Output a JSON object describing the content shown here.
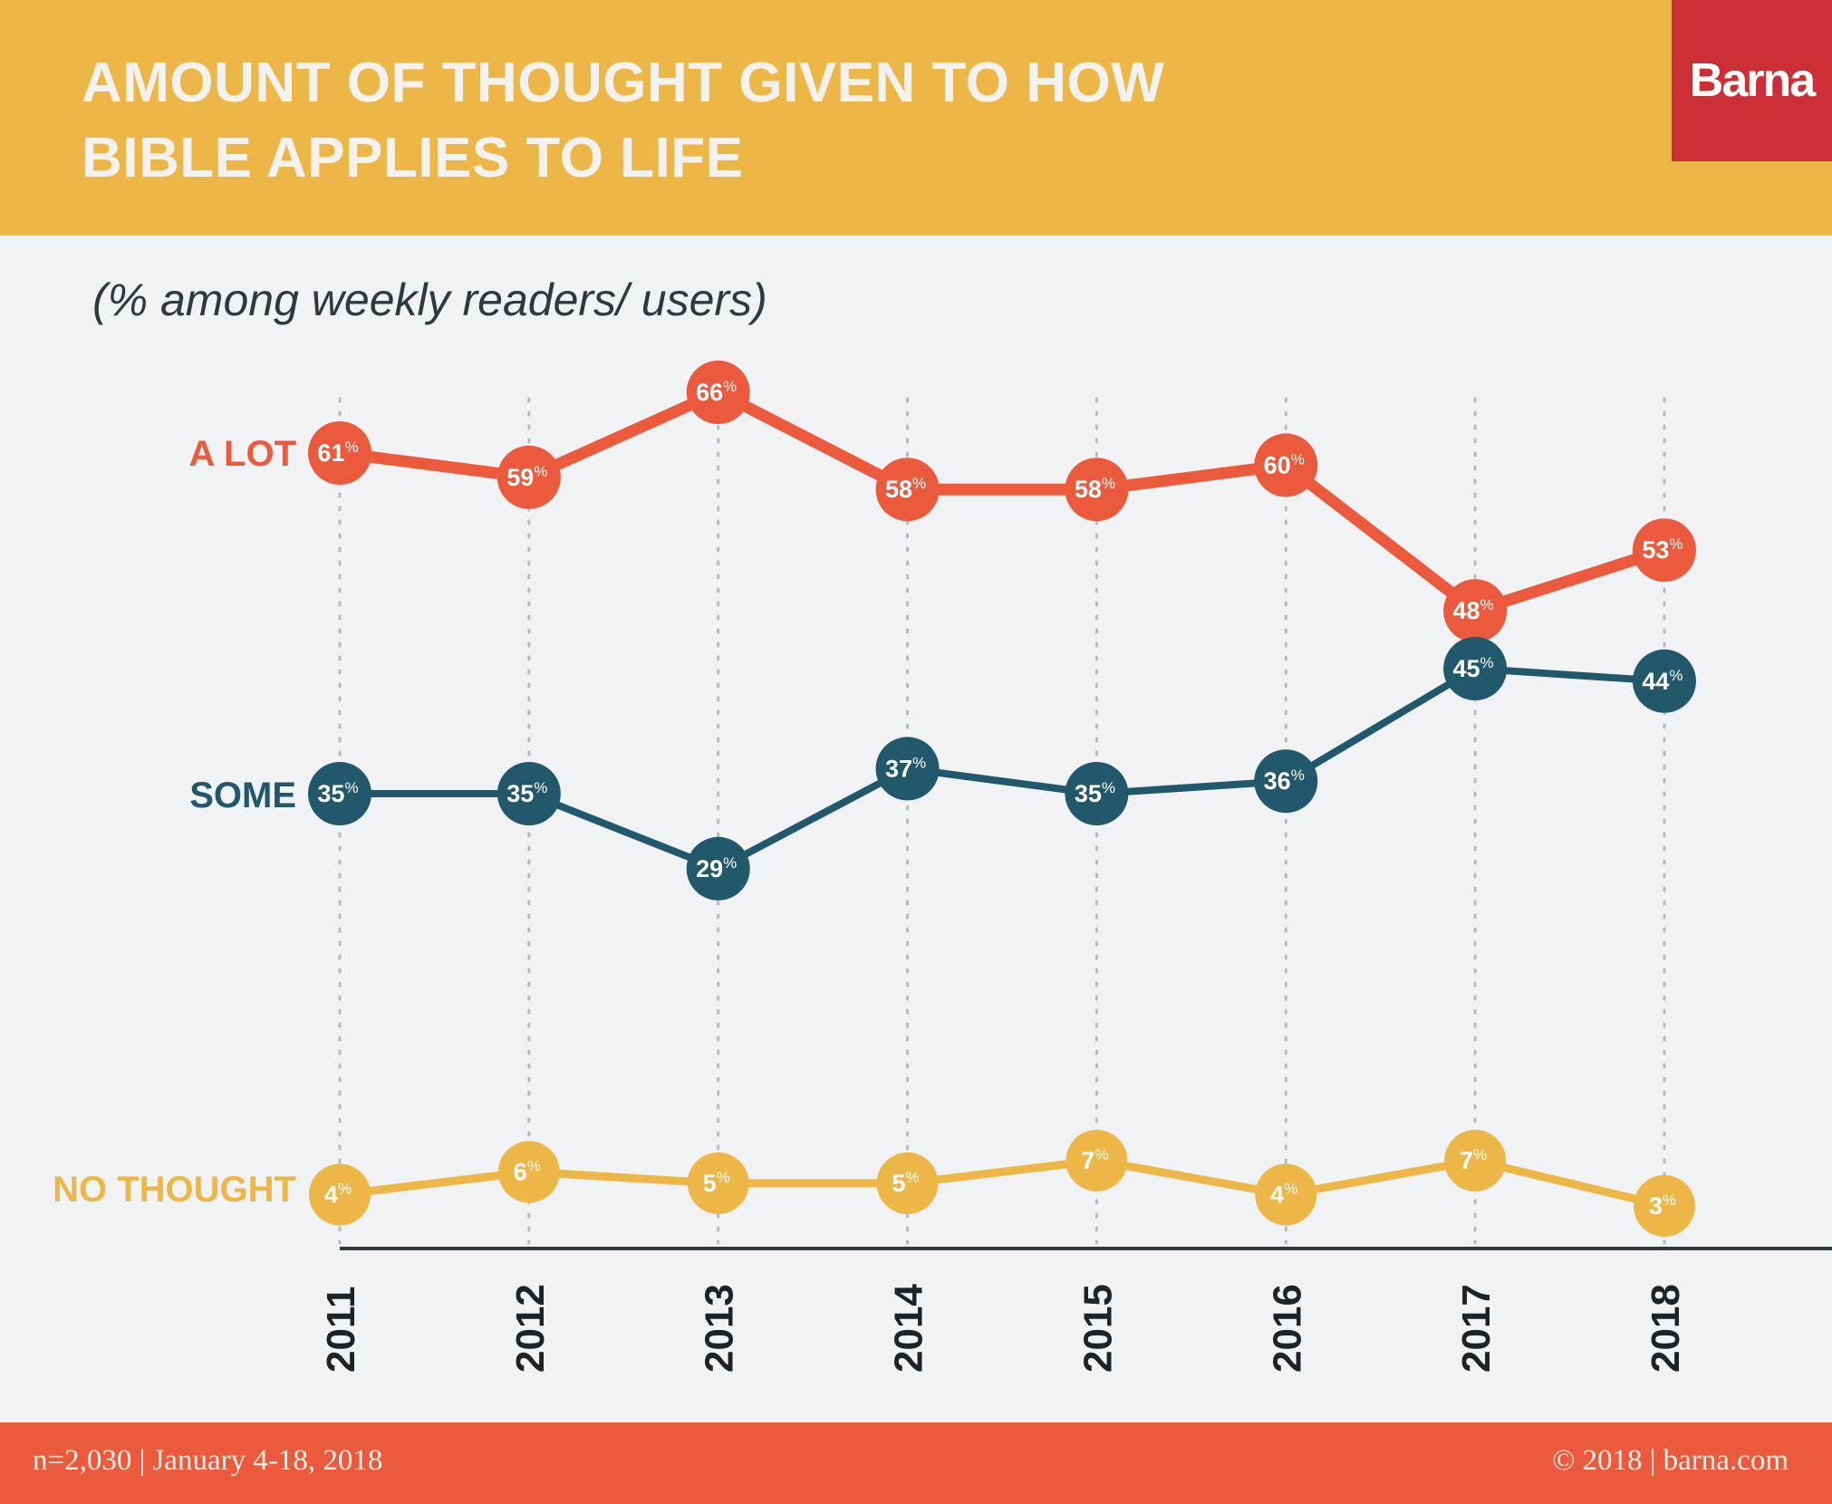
{
  "header": {
    "title_line1": "AMOUNT OF THOUGHT GIVEN TO HOW",
    "title_line2": "BIBLE APPLIES TO LIFE",
    "logo": "Barna"
  },
  "subtitle": "(% among weekly readers/ users)",
  "footer": {
    "left": "n=2,030 | January 4-18, 2018",
    "right": "© 2018 | barna.com"
  },
  "colors": {
    "header_bg": "#edb748",
    "logo_bg": "#cd2f37",
    "a_lot": "#ec5a3e",
    "some": "#21586b",
    "no_thought": "#edb748",
    "footer_bg": "#ec5a3e",
    "background": "#f1f2f4"
  },
  "chart_data": {
    "type": "line",
    "title": "AMOUNT OF THOUGHT GIVEN TO HOW BIBLE APPLIES TO LIFE",
    "subtitle": "(% among weekly readers/ users)",
    "xlabel": "",
    "ylabel": "",
    "x": [
      "2011",
      "2012",
      "2013",
      "2014",
      "2015",
      "2016",
      "2017",
      "2018"
    ],
    "unit": "%",
    "grid": "vertical dotted lines at each year",
    "legend": "series labels left of first point",
    "series": [
      {
        "name": "A LOT",
        "color": "#ec5a3e",
        "values": [
          61,
          59,
          66,
          58,
          58,
          60,
          48,
          53
        ]
      },
      {
        "name": "SOME",
        "color": "#21586b",
        "values": [
          35,
          35,
          29,
          37,
          35,
          36,
          45,
          44
        ]
      },
      {
        "name": "NO THOUGHT",
        "color": "#edb748",
        "values": [
          4,
          6,
          5,
          5,
          7,
          4,
          7,
          3
        ]
      }
    ]
  }
}
